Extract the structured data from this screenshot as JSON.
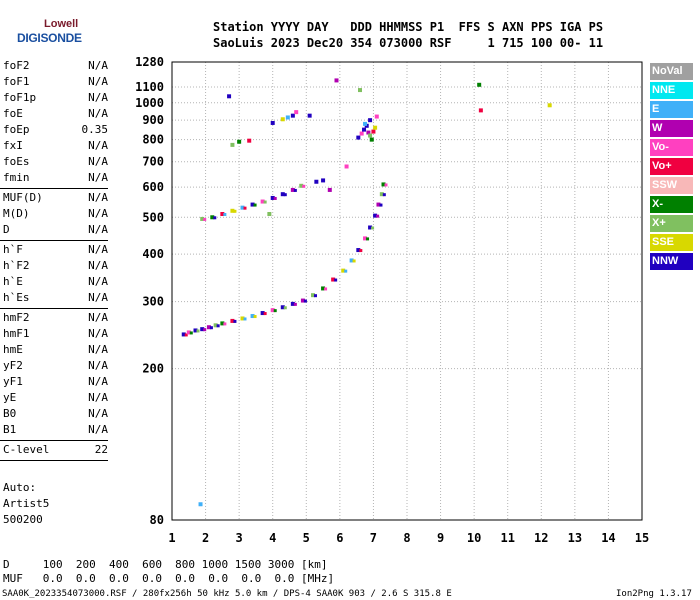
{
  "logo": {
    "small": "Lowell",
    "big": "DIGISONDE"
  },
  "header": {
    "line1": "Station YYYY DAY   DDD HHMMSS P1  FFS S AXN PPS IGA PS",
    "line2": "SaoLuis 2023 Dec20 354 073000 RSF     1 715 100 00- 11"
  },
  "params": [
    [
      {
        "name": "foF2",
        "value": "N/A"
      },
      {
        "name": "foF1",
        "value": "N/A"
      },
      {
        "name": "foF1p",
        "value": "N/A"
      },
      {
        "name": "foE",
        "value": "N/A"
      },
      {
        "name": "foEp",
        "value": "0.35"
      },
      {
        "name": "fxI",
        "value": "N/A"
      },
      {
        "name": "foEs",
        "value": "N/A"
      },
      {
        "name": "fmin",
        "value": "N/A"
      }
    ],
    [
      {
        "name": "MUF(D)",
        "value": "N/A"
      },
      {
        "name": "M(D)",
        "value": "N/A"
      },
      {
        "name": "D",
        "value": "N/A"
      }
    ],
    [
      {
        "name": "h`F",
        "value": "N/A"
      },
      {
        "name": "h`F2",
        "value": "N/A"
      },
      {
        "name": "h`E",
        "value": "N/A"
      },
      {
        "name": "h`Es",
        "value": "N/A"
      }
    ],
    [
      {
        "name": "hmF2",
        "value": "N/A"
      },
      {
        "name": "hmF1",
        "value": "N/A"
      },
      {
        "name": "hmE",
        "value": "N/A"
      },
      {
        "name": "yF2",
        "value": "N/A"
      },
      {
        "name": "yF1",
        "value": "N/A"
      },
      {
        "name": "yE",
        "value": "N/A"
      },
      {
        "name": "B0",
        "value": "N/A"
      },
      {
        "name": "B1",
        "value": "N/A"
      }
    ],
    [
      {
        "name": "C-level",
        "value": "22"
      }
    ]
  ],
  "side_text": [
    "Auto:",
    "Artist5",
    "500200"
  ],
  "bottom": {
    "d_row": "D     100  200  400  600  800 1000 1500 3000 [km]",
    "muf_row": "MUF   0.0  0.0  0.0  0.0  0.0  0.0  0.0  0.0 [MHz]"
  },
  "footer": {
    "left": "SAA0K_2023354073000.RSF / 280fx256h 50 kHz 5.0 km / DPS-4 SAA0K 903 / 2.6 S 315.8 E",
    "right": "Ion2Png 1.3.17"
  },
  "legend": [
    {
      "label": "NoVal",
      "color": "#a0a0a0"
    },
    {
      "label": "NNE",
      "color": "#00e8f0"
    },
    {
      "label": "E",
      "color": "#40b0f8"
    },
    {
      "label": "W",
      "color": "#b000b0"
    },
    {
      "label": "Vo-",
      "color": "#ff40c0"
    },
    {
      "label": "Vo+",
      "color": "#f00040"
    },
    {
      "label": "SSW",
      "color": "#f8b8b8"
    },
    {
      "label": "X-",
      "color": "#008000"
    },
    {
      "label": "X+",
      "color": "#80c060"
    },
    {
      "label": "SSE",
      "color": "#d8d800"
    },
    {
      "label": "NNW",
      "color": "#2000c0"
    }
  ],
  "chart_data": {
    "type": "scatter",
    "title": "",
    "xlabel": "",
    "ylabel": "",
    "xlim": [
      1,
      15
    ],
    "ylim": [
      80,
      1280
    ],
    "y_scale": "log",
    "grid": true,
    "x_ticks": [
      1,
      2,
      3,
      4,
      5,
      6,
      7,
      8,
      9,
      10,
      11,
      12,
      13,
      14,
      15
    ],
    "y_ticks": [
      80,
      200,
      300,
      400,
      500,
      600,
      700,
      800,
      900,
      1000,
      1100,
      1280
    ],
    "traces": [
      {
        "name": "F-trace",
        "points": [
          [
            1.35,
            246
          ],
          [
            1.5,
            249
          ],
          [
            1.7,
            252
          ],
          [
            1.9,
            254
          ],
          [
            2.1,
            257
          ],
          [
            2.3,
            260
          ],
          [
            2.5,
            263
          ],
          [
            2.8,
            267
          ],
          [
            3.1,
            271
          ],
          [
            3.4,
            275
          ],
          [
            3.7,
            280
          ],
          [
            4.0,
            285
          ],
          [
            4.3,
            290
          ],
          [
            4.6,
            296
          ],
          [
            4.9,
            302
          ],
          [
            5.2,
            312
          ],
          [
            5.5,
            325
          ],
          [
            5.8,
            343
          ],
          [
            6.1,
            362
          ],
          [
            6.35,
            385
          ],
          [
            6.55,
            410
          ],
          [
            6.75,
            440
          ],
          [
            6.9,
            470
          ],
          [
            7.05,
            505
          ],
          [
            7.15,
            540
          ],
          [
            7.25,
            575
          ],
          [
            7.3,
            610
          ]
        ]
      },
      {
        "name": "multi-hop",
        "points": [
          [
            1.9,
            495
          ],
          [
            2.2,
            500
          ],
          [
            2.5,
            510
          ],
          [
            2.8,
            520
          ],
          [
            3.1,
            530
          ],
          [
            3.4,
            540
          ],
          [
            3.7,
            550
          ],
          [
            4.0,
            562
          ],
          [
            4.3,
            575
          ],
          [
            4.6,
            590
          ],
          [
            4.85,
            605
          ]
        ]
      },
      {
        "name": "high-cluster",
        "points": [
          [
            6.55,
            810
          ],
          [
            6.65,
            830
          ],
          [
            6.72,
            850
          ],
          [
            6.8,
            870
          ],
          [
            6.85,
            835
          ],
          [
            6.9,
            820
          ],
          [
            6.95,
            800
          ],
          [
            7.0,
            840
          ],
          [
            7.05,
            860
          ],
          [
            6.75,
            880
          ],
          [
            6.9,
            900
          ],
          [
            7.1,
            920
          ]
        ]
      },
      {
        "name": "sparse",
        "points": [
          [
            2.8,
            775
          ],
          [
            3.0,
            790
          ],
          [
            3.3,
            795
          ],
          [
            4.3,
            905
          ],
          [
            4.45,
            915
          ],
          [
            4.6,
            925
          ],
          [
            4.7,
            945
          ],
          [
            4.0,
            885
          ],
          [
            5.1,
            925
          ],
          [
            5.9,
            1145
          ],
          [
            6.6,
            1080
          ],
          [
            10.15,
            1115
          ],
          [
            10.2,
            955
          ],
          [
            12.25,
            985
          ],
          [
            1.85,
            88
          ],
          [
            2.7,
            1040
          ],
          [
            6.2,
            680
          ],
          [
            5.3,
            620
          ],
          [
            5.5,
            625
          ],
          [
            5.7,
            590
          ],
          [
            3.9,
            510
          ]
        ]
      }
    ]
  }
}
